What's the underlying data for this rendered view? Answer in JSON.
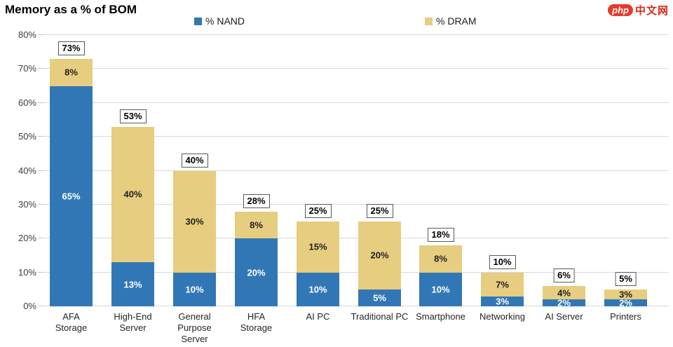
{
  "title": "Memory as a % of BOM",
  "logo": {
    "badge": "php",
    "text": "中文网"
  },
  "legend": {
    "nand": {
      "label": "% NAND",
      "color": "#3277B5"
    },
    "dram": {
      "label": "% DRAM",
      "color": "#E6CD7F"
    }
  },
  "chart_data": {
    "type": "bar",
    "stacked": true,
    "title": "Memory as a % of BOM",
    "xlabel": "",
    "ylabel": "",
    "ylim": [
      0,
      80
    ],
    "yticks": [
      "0%",
      "10%",
      "20%",
      "30%",
      "40%",
      "50%",
      "60%",
      "70%",
      "80%"
    ],
    "grid": true,
    "legend_position": "top",
    "legend_entries": [
      "% NAND",
      "% DRAM"
    ],
    "categories": [
      "AFA Storage",
      "High-End Server",
      "General Purpose Server",
      "HFA Storage",
      "AI PC",
      "Traditional PC",
      "Smartphone",
      "Networking",
      "AI Server",
      "Printers"
    ],
    "category_lines": [
      [
        "AFA",
        "Storage"
      ],
      [
        "High-End",
        "Server"
      ],
      [
        "General",
        "Purpose",
        "Server"
      ],
      [
        "HFA",
        "Storage"
      ],
      [
        "AI PC"
      ],
      [
        "Traditional PC"
      ],
      [
        "Smartphone"
      ],
      [
        "Networking"
      ],
      [
        "AI Server"
      ],
      [
        "Printers"
      ]
    ],
    "series": [
      {
        "name": "% NAND",
        "color": "#3277B5",
        "label_color": "#FFFFFF",
        "values": [
          65,
          13,
          10,
          20,
          10,
          5,
          10,
          3,
          2,
          2
        ],
        "labels": [
          "65%",
          "13%",
          "10%",
          "20%",
          "10%",
          "5%",
          "10%",
          "3%",
          "2%",
          "2%"
        ]
      },
      {
        "name": "% DRAM",
        "color": "#E6CD7F",
        "label_color": "#1F1F1F",
        "values": [
          8,
          40,
          30,
          8,
          15,
          20,
          8,
          7,
          4,
          3
        ],
        "labels": [
          "8%",
          "40%",
          "30%",
          "8%",
          "15%",
          "20%",
          "8%",
          "7%",
          "4%",
          "3%"
        ]
      }
    ],
    "totals": [
      73,
      53,
      40,
      28,
      25,
      25,
      18,
      10,
      6,
      5
    ],
    "total_labels": [
      "73%",
      "53%",
      "40%",
      "28%",
      "25%",
      "25%",
      "18%",
      "10%",
      "6%",
      "5%"
    ]
  }
}
